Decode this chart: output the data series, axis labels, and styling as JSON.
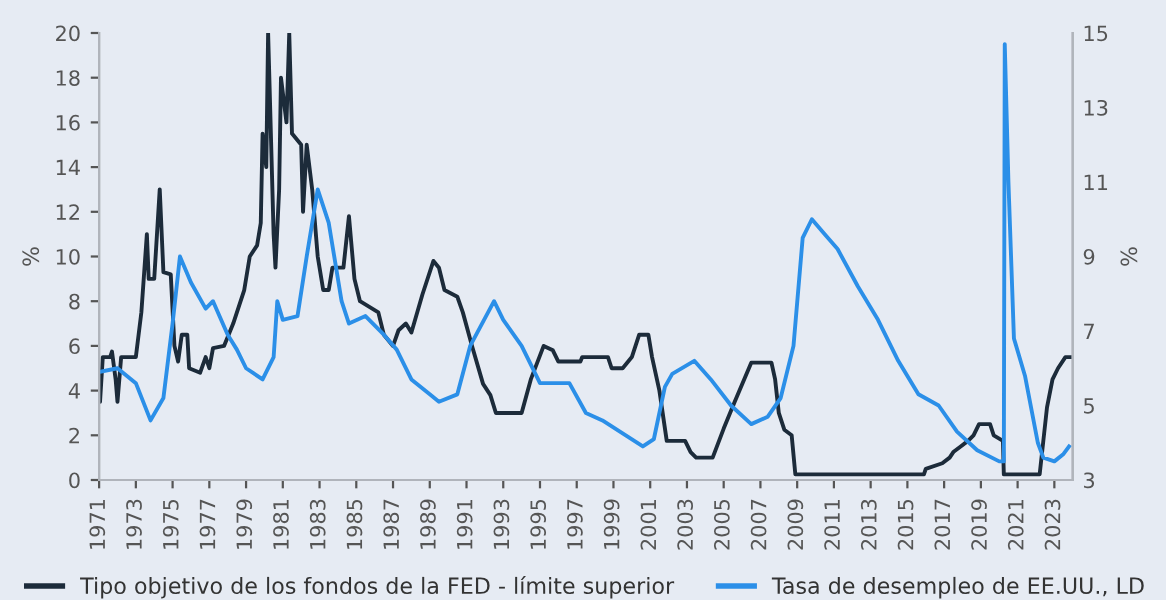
{
  "chart_data": {
    "type": "line",
    "xlim": [
      1971,
      2024
    ],
    "xticks": [
      1971,
      1973,
      1975,
      1977,
      1979,
      1981,
      1983,
      1985,
      1987,
      1989,
      1991,
      1993,
      1995,
      1997,
      1999,
      2001,
      2003,
      2005,
      2007,
      2009,
      2011,
      2013,
      2015,
      2017,
      2019,
      2021,
      2023
    ],
    "ylabel": "%",
    "ylim": [
      0,
      20
    ],
    "yticks": [
      0,
      2,
      4,
      6,
      8,
      10,
      12,
      14,
      16,
      18,
      20
    ],
    "y2label": "%",
    "y2lim": [
      3,
      15
    ],
    "y2ticks": [
      3,
      5,
      7,
      9,
      11,
      13,
      15
    ],
    "grid": false,
    "legend": "bottom",
    "line_style": "solid",
    "marker": "none",
    "series": [
      {
        "name": "Tipo objetivo de los fondos de la FED - límite superior",
        "color": "#1c2b3a",
        "x": [
          1971.0,
          1971.05,
          1971.2,
          1971.6,
          1971.7,
          1971.9,
          1972.0,
          1972.2,
          1973.0,
          1973.3,
          1973.6,
          1973.7,
          1974.0,
          1974.3,
          1974.5,
          1974.9,
          1975.1,
          1975.3,
          1975.5,
          1975.8,
          1975.9,
          1976.5,
          1976.8,
          1977.0,
          1977.2,
          1977.8,
          1978.3,
          1978.9,
          1979.2,
          1979.6,
          1979.8,
          1979.9,
          1980.1,
          1980.2,
          1980.5,
          1980.6,
          1980.8,
          1980.9,
          1981.2,
          1981.35,
          1981.5,
          1982.0,
          1982.1,
          1982.3,
          1982.6,
          1982.9,
          1983.2,
          1983.5,
          1983.7,
          1984.3,
          1984.6,
          1984.9,
          1985.2,
          1985.6,
          1986.2,
          1986.5,
          1987.0,
          1987.3,
          1987.7,
          1988.0,
          1988.6,
          1989.2,
          1989.5,
          1989.8,
          1990.5,
          1990.8,
          1991.3,
          1991.9,
          1992.3,
          1992.6,
          1994.0,
          1994.5,
          1995.2,
          1995.7,
          1996.0,
          1997.2,
          1997.3,
          1998.7,
          1998.9,
          1999.5,
          2000.0,
          2000.4,
          2000.9,
          2001.1,
          2001.5,
          2001.9,
          2002.9,
          2003.2,
          2003.5,
          2004.4,
          2005.0,
          2005.6,
          2006.5,
          2007.6,
          2007.8,
          2008.0,
          2008.3,
          2008.7,
          2008.9,
          2015.9,
          2016.0,
          2016.9,
          2017.3,
          2017.5,
          2017.9,
          2018.3,
          2018.6,
          2018.9,
          2019.5,
          2019.7,
          2020.2,
          2020.25,
          2022.2,
          2022.4,
          2022.6,
          2022.9,
          2023.2,
          2023.6,
          2023.9
        ],
        "values": [
          4,
          3.5,
          5.5,
          5.5,
          5.75,
          4.5,
          3.5,
          5.5,
          5.5,
          7.5,
          11,
          9,
          9,
          13,
          9.3,
          9.2,
          6,
          5.3,
          6.5,
          6.5,
          5,
          4.8,
          5.5,
          5,
          5.9,
          6,
          7,
          8.5,
          10,
          10.5,
          11.5,
          15.5,
          14,
          20,
          11,
          9.5,
          13,
          18,
          16,
          20,
          15.5,
          15,
          12,
          15,
          13,
          10,
          8.5,
          8.5,
          9.5,
          9.5,
          11.8,
          9,
          8,
          7.8,
          7.5,
          6.5,
          6,
          6.7,
          7,
          6.6,
          8.3,
          9.8,
          9.5,
          8.5,
          8.2,
          7.5,
          6,
          4.3,
          3.8,
          3,
          3,
          4.5,
          6,
          5.8,
          5.3,
          5.3,
          5.5,
          5.5,
          5,
          5,
          5.5,
          6.5,
          6.5,
          5.5,
          4,
          1.75,
          1.75,
          1.25,
          1,
          1,
          2.3,
          3.5,
          5.25,
          5.25,
          4.5,
          3,
          2.25,
          2,
          0.25,
          0.25,
          0.5,
          0.75,
          1,
          1.25,
          1.5,
          1.75,
          2,
          2.5,
          2.5,
          2,
          1.75,
          0.25,
          0.25,
          1.75,
          3.25,
          4.5,
          5,
          5.5,
          5.5
        ]
      },
      {
        "name": "Tasa de desempleo de EE.UU., LD",
        "color": "#2b8fe8",
        "axis": "y2",
        "x": [
          1971.0,
          1972.0,
          1973.0,
          1973.8,
          1974.5,
          1975.0,
          1975.4,
          1976.0,
          1976.8,
          1977.2,
          1978.0,
          1978.5,
          1979.0,
          1979.9,
          1980.5,
          1980.7,
          1981.0,
          1981.8,
          1982.3,
          1982.9,
          1983.5,
          1984.2,
          1984.6,
          1985.5,
          1986.5,
          1987.2,
          1988.0,
          1989.0,
          1989.5,
          1990.5,
          1991.2,
          1992.5,
          1993.0,
          1994.0,
          1995.0,
          1996.6,
          1997.5,
          1998.4,
          2000.6,
          2001.2,
          2001.8,
          2002.2,
          2003.4,
          2004.3,
          2005.4,
          2006.5,
          2007.4,
          2008.1,
          2008.8,
          2009.3,
          2009.8,
          2010.5,
          2011.2,
          2012.3,
          2013.4,
          2014.5,
          2015.6,
          2016.7,
          2017.7,
          2018.8,
          2020.0,
          2020.25,
          2020.3,
          2020.5,
          2020.8,
          2021.4,
          2022.1,
          2022.4,
          2023.0,
          2023.5,
          2023.8
        ],
        "values": [
          5.9,
          6.0,
          5.6,
          4.6,
          5.2,
          7.2,
          9.0,
          8.3,
          7.6,
          7.8,
          6.9,
          6.5,
          6.0,
          5.7,
          6.3,
          7.8,
          7.3,
          7.4,
          9.0,
          10.8,
          9.9,
          7.8,
          7.2,
          7.4,
          6.9,
          6.5,
          5.7,
          5.3,
          5.1,
          5.3,
          6.6,
          7.8,
          7.3,
          6.6,
          5.6,
          5.6,
          4.8,
          4.6,
          3.9,
          4.1,
          5.5,
          5.85,
          6.2,
          5.7,
          5.0,
          4.5,
          4.7,
          5.2,
          6.6,
          9.5,
          10.0,
          9.6,
          9.2,
          8.2,
          7.3,
          6.2,
          5.3,
          5.0,
          4.3,
          3.8,
          3.5,
          3.5,
          14.7,
          11,
          6.8,
          5.8,
          4.0,
          3.6,
          3.5,
          3.7,
          3.9
        ]
      }
    ]
  }
}
